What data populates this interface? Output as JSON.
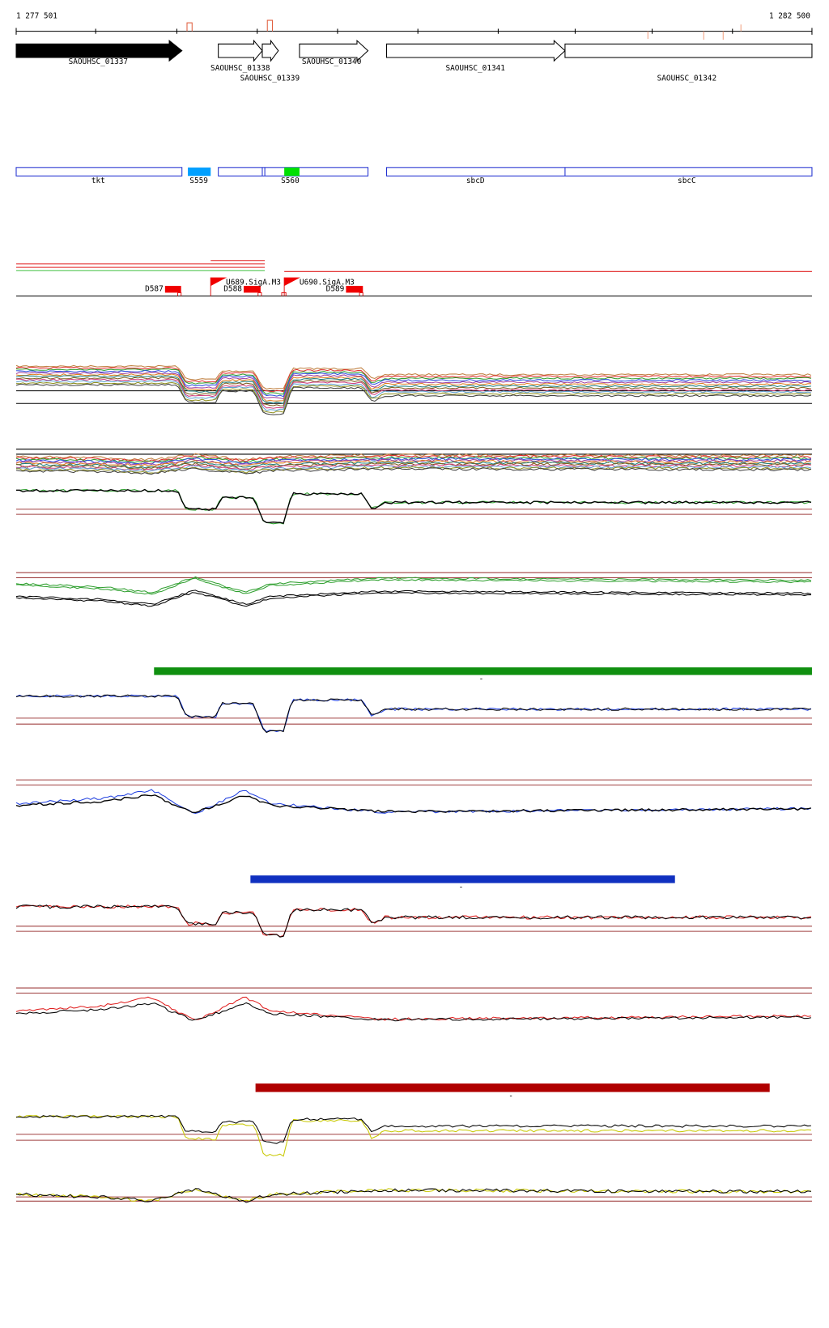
{
  "ruler": {
    "start": "1 277 501",
    "end": "1 282 500"
  },
  "genes": [
    {
      "label": "SAOUHSC_01337"
    },
    {
      "label": "SAOUHSC_01338"
    },
    {
      "label": "SAOUHSC_01339"
    },
    {
      "label": "SAOUHSC_01340"
    },
    {
      "label": "SAOUHSC_01341"
    },
    {
      "label": "SAOUHSC_01342"
    }
  ],
  "features": [
    {
      "label": "tkt"
    },
    {
      "label": "S559"
    },
    {
      "label": "S560"
    },
    {
      "label": "sbcD"
    },
    {
      "label": "sbcC"
    }
  ],
  "transcripts": [
    {
      "label": "D587"
    },
    {
      "label": "U689.SigA.M3"
    },
    {
      "label": "D588"
    },
    {
      "label": "U690.SigA.M3"
    },
    {
      "label": "D589"
    }
  ],
  "markers": [
    "-",
    "-",
    "-"
  ]
}
